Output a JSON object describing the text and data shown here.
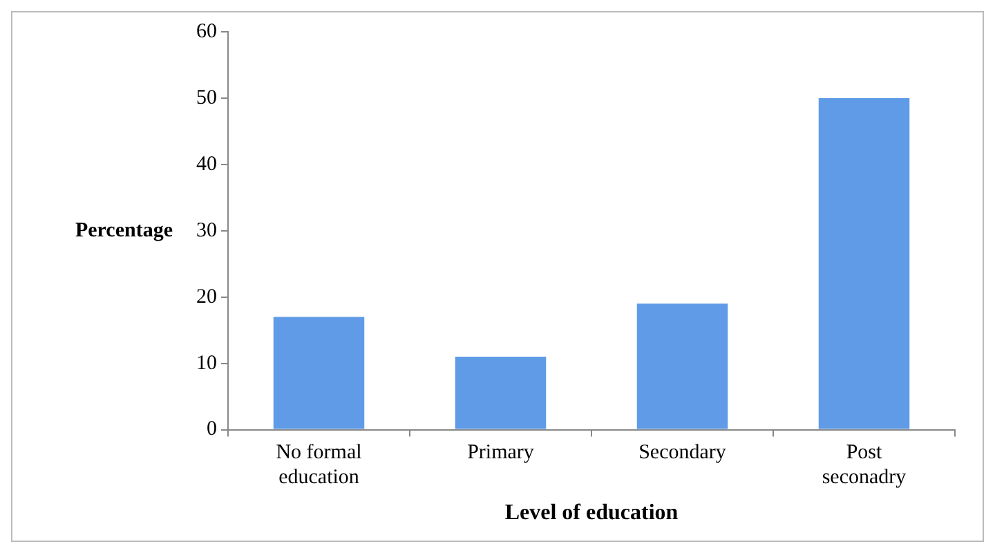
{
  "chart_data": {
    "type": "bar",
    "xlabel": "Level of education",
    "ylabel": "Percentage",
    "categories": [
      "No formal education",
      "Primary",
      "Secondary",
      "Post seconadry"
    ],
    "values": [
      17,
      11,
      19,
      50
    ],
    "color": "#5f9be6",
    "ylim": [
      0,
      60
    ],
    "yticks": [
      0,
      10,
      20,
      30,
      40,
      50,
      60
    ]
  }
}
